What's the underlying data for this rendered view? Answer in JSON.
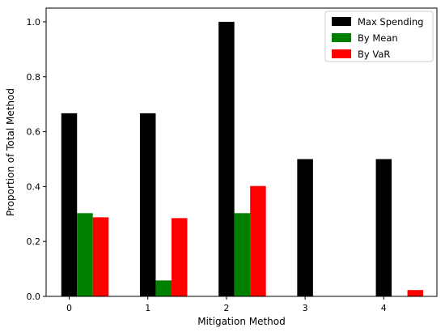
{
  "chart_data": {
    "type": "bar",
    "title": "",
    "xlabel": "Mitigation Method",
    "ylabel": "Proportion of Total Method",
    "categories": [
      "0",
      "1",
      "2",
      "3",
      "4"
    ],
    "series": [
      {
        "name": "Max Spending",
        "color": "#000000",
        "values": [
          0.667,
          0.667,
          1.0,
          0.5,
          0.5
        ]
      },
      {
        "name": "By Mean",
        "color": "#008000",
        "values": [
          0.303,
          0.058,
          0.303,
          0.0,
          0.0
        ]
      },
      {
        "name": "By VaR",
        "color": "#ff0000",
        "values": [
          0.288,
          0.285,
          0.402,
          0.0,
          0.023
        ]
      }
    ],
    "ylim": [
      0,
      1.05
    ],
    "yticks": [
      "0.0",
      "0.2",
      "0.4",
      "0.6",
      "0.8",
      "1.0"
    ],
    "grid": false,
    "legend_position": "top-right"
  }
}
